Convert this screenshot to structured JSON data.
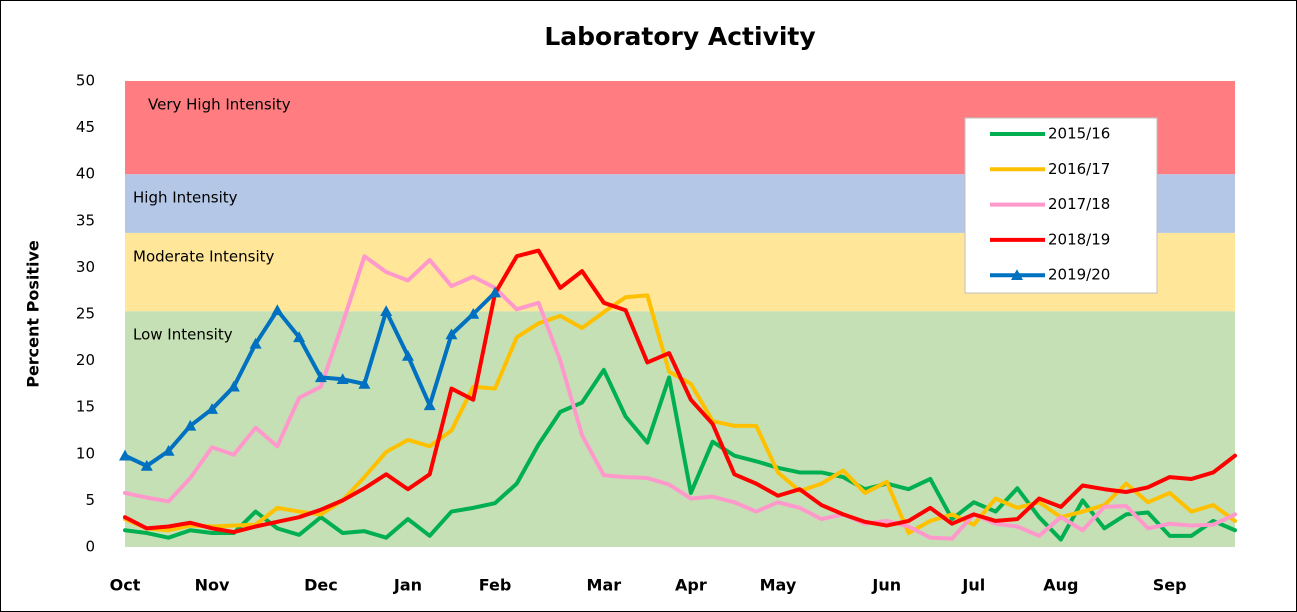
{
  "chart_data": {
    "type": "line",
    "title": "Laboratory Activity",
    "y_label": "Percent Positive",
    "categories": [
      "Oct",
      null,
      null,
      null,
      "Nov",
      null,
      null,
      null,
      null,
      "Dec",
      null,
      null,
      null,
      "Jan",
      null,
      null,
      null,
      "Feb",
      null,
      null,
      null,
      null,
      "Mar",
      null,
      null,
      null,
      "Apr",
      null,
      null,
      null,
      "May",
      null,
      null,
      null,
      null,
      "Jun",
      null,
      null,
      null,
      "Jul",
      null,
      null,
      null,
      "Aug",
      null,
      null,
      null,
      null,
      "Sep",
      null,
      null,
      null
    ],
    "ylim": [
      0,
      50
    ],
    "yticks": [
      0,
      5,
      10,
      15,
      20,
      25,
      30,
      35,
      40,
      45,
      50
    ],
    "grid": false,
    "legend": "upper right",
    "bands": [
      {
        "label": "Low Intensity",
        "from": 0,
        "to": 25.3,
        "color": "#c5e0b4"
      },
      {
        "label": "Moderate Intensity",
        "from": 25.3,
        "to": 33.7,
        "color": "#ffe699"
      },
      {
        "label": "High Intensity",
        "from": 33.7,
        "to": 40,
        "color": "#b4c7e7"
      },
      {
        "label": "Very High Intensity",
        "from": 40,
        "to": 50,
        "color": "#ff7c80"
      }
    ],
    "series": [
      {
        "name": "2015/16",
        "color": "#00b050",
        "values": [
          1.8,
          1.5,
          1.0,
          1.8,
          1.5,
          1.5,
          3.8,
          2.0,
          1.3,
          3.2,
          1.5,
          1.7,
          1.0,
          3.0,
          1.2,
          3.8,
          4.2,
          4.7,
          6.8,
          11.0,
          14.5,
          15.5,
          19.0,
          14.0,
          11.2,
          18.2,
          5.8,
          11.3,
          9.8,
          9.2,
          8.5,
          8.0,
          8.0,
          7.5,
          6.2,
          6.8,
          6.2,
          7.3,
          3.0,
          4.8,
          3.8,
          6.3,
          3.2,
          0.8,
          5.0,
          2.0,
          3.5,
          3.7,
          1.2,
          1.2,
          2.8,
          1.8
        ]
      },
      {
        "name": "2016/17",
        "color": "#ffc000",
        "values": [
          3.0,
          2.0,
          1.8,
          2.3,
          2.2,
          2.3,
          2.4,
          4.2,
          3.8,
          3.5,
          5.0,
          7.5,
          10.2,
          11.5,
          10.8,
          12.5,
          17.2,
          17.0,
          22.5,
          24.0,
          24.8,
          23.5,
          25.2,
          26.8,
          27.0,
          18.8,
          17.5,
          13.5,
          13.0,
          13.0,
          8.0,
          6.0,
          6.8,
          8.2,
          5.8,
          7.0,
          1.5,
          2.8,
          3.5,
          2.4,
          5.2,
          4.2,
          4.8,
          3.2,
          3.8,
          4.5,
          6.8,
          4.8,
          5.8,
          3.8,
          4.5,
          2.8
        ]
      },
      {
        "name": "2017/18",
        "color": "#ff99cc",
        "values": [
          5.8,
          5.3,
          4.9,
          7.4,
          10.7,
          9.9,
          12.8,
          10.8,
          16.0,
          17.2,
          24.0,
          31.2,
          29.5,
          28.6,
          30.8,
          28.0,
          29.0,
          27.8,
          25.5,
          26.2,
          20.0,
          12.0,
          7.7,
          7.5,
          7.4,
          6.7,
          5.2,
          5.4,
          4.8,
          3.8,
          4.8,
          4.2,
          3.0,
          3.5,
          2.5,
          2.8,
          2.2,
          1.0,
          0.9,
          3.5,
          2.5,
          2.2,
          1.2,
          3.2,
          1.8,
          4.3,
          4.4,
          2.0,
          2.5,
          2.3,
          2.4,
          3.5
        ]
      },
      {
        "name": "2018/19",
        "color": "#ff0000",
        "values": [
          3.2,
          2.0,
          2.2,
          2.6,
          2.0,
          1.6,
          2.2,
          2.7,
          3.2,
          4.0,
          5.0,
          6.3,
          7.8,
          6.2,
          7.8,
          17.0,
          15.8,
          27.2,
          31.2,
          31.8,
          27.8,
          29.6,
          26.2,
          25.4,
          19.8,
          20.8,
          15.8,
          13.2,
          7.8,
          6.8,
          5.5,
          6.2,
          4.5,
          3.5,
          2.7,
          2.3,
          2.8,
          4.2,
          2.5,
          3.5,
          2.8,
          3.0,
          5.2,
          4.3,
          6.6,
          6.2,
          5.9,
          6.4,
          7.5,
          7.3,
          8.0,
          9.8
        ]
      },
      {
        "name": "2019/20",
        "color": "#0070c0",
        "marker": "triangle",
        "values": [
          9.8,
          8.7,
          10.3,
          13.0,
          14.8,
          17.2,
          21.8,
          25.4,
          22.5,
          18.2,
          18.0,
          17.5,
          25.3,
          20.5,
          15.2,
          22.8,
          25.0,
          27.3,
          null,
          null,
          null,
          null,
          null,
          null,
          null,
          null,
          null,
          null,
          null,
          null,
          null,
          null,
          null,
          null,
          null,
          null,
          null,
          null,
          null,
          null,
          null,
          null,
          null,
          null,
          null,
          null,
          null,
          null,
          null,
          null,
          null,
          null
        ]
      }
    ]
  }
}
